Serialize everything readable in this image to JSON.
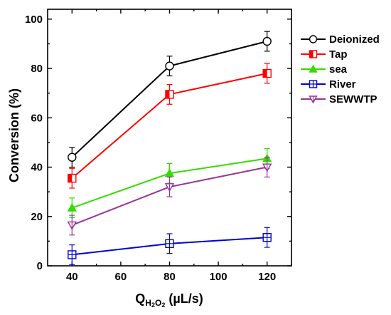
{
  "chart_data": {
    "type": "line",
    "xlabel": {
      "main": "Q",
      "sub": "H2O2",
      "sub_parts": [
        "H",
        "2",
        "O",
        "2"
      ],
      "unit": " (µL/s)"
    },
    "ylabel": "Conversion (%)",
    "xlim": [
      30,
      130
    ],
    "ylim": [
      0,
      104
    ],
    "xticks": [
      40,
      60,
      80,
      100,
      120
    ],
    "yticks": [
      0,
      20,
      40,
      60,
      80,
      100
    ],
    "x": [
      40,
      80,
      120
    ],
    "legend_position": "top-right",
    "series": [
      {
        "name": "Deionized",
        "values": [
          44,
          81,
          91
        ],
        "errors": [
          4,
          4,
          4
        ],
        "color": "#000000",
        "marker": "circle",
        "fill": "none"
      },
      {
        "name": "Tap",
        "values": [
          35.5,
          69.5,
          78
        ],
        "errors": [
          4,
          4,
          4
        ],
        "color": "#ff0000",
        "marker": "square-half",
        "fill": "#ff0000"
      },
      {
        "name": "sea",
        "values": [
          23.5,
          37.5,
          43.5
        ],
        "errors": [
          4,
          4,
          4
        ],
        "color": "#33dd00",
        "marker": "triangle-up",
        "fill": "#33dd00"
      },
      {
        "name": "River",
        "values": [
          4.5,
          9,
          11.5
        ],
        "errors": [
          4,
          4,
          4
        ],
        "color": "#0000dd",
        "marker": "square-cross",
        "fill": "none"
      },
      {
        "name": "SEWWTP",
        "values": [
          16.5,
          32,
          40
        ],
        "errors": [
          4,
          4,
          4
        ],
        "color": "#993399",
        "marker": "triangle-down",
        "fill": "none"
      }
    ]
  }
}
